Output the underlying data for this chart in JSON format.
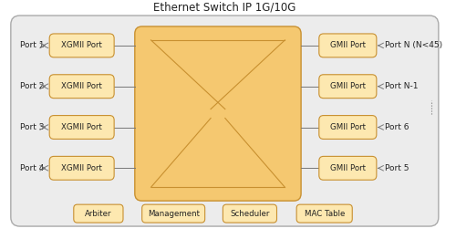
{
  "title": "Ethernet Switch IP 1G/10G",
  "title_fontsize": 8.5,
  "box_fill": "#f5c870",
  "box_fill_light": "#fde8b0",
  "box_edge": "#c89030",
  "outer_fill": "#ececec",
  "outer_edge": "#aaaaaa",
  "xgmii_ports": [
    "XGMII Port",
    "XGMII Port",
    "XGMII Port",
    "XGMII Port"
  ],
  "gmii_ports": [
    "GMII Port",
    "GMII Port",
    "GMII Port",
    "GMII Port"
  ],
  "left_labels": [
    "Port 1",
    "Port 2",
    "Port 3",
    "Port 4"
  ],
  "right_labels": [
    "Port N (N<45)",
    "Port N-1",
    "Port 6",
    "Port 5"
  ],
  "bottom_boxes": [
    "Arbiter",
    "Management",
    "Scheduler",
    "MAC Table"
  ],
  "font_size": 6.2,
  "label_font_size": 6.5,
  "line_color": "#777777",
  "text_color": "#222222",
  "cross_color": "#c89030"
}
